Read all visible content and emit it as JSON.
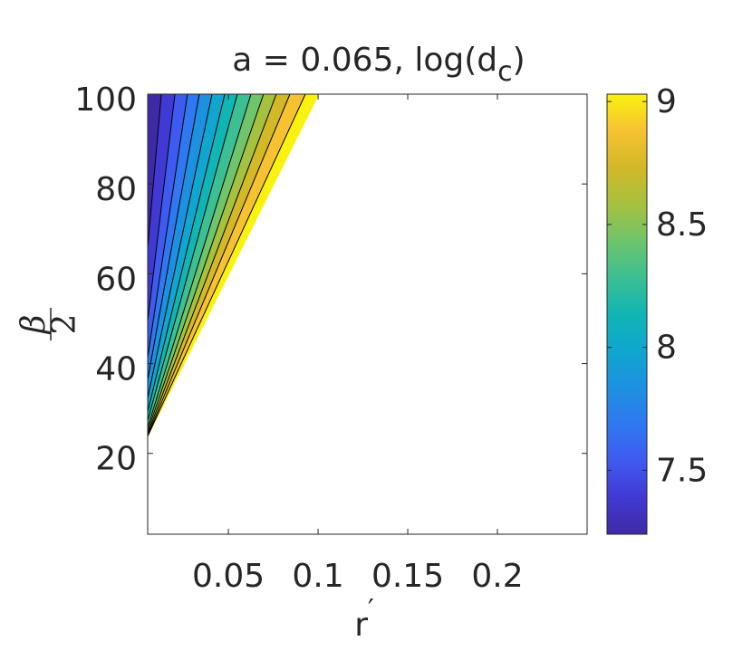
{
  "chart_data": {
    "type": "contourf",
    "title": [
      "a = 0.065, log(d",
      "c",
      ")"
    ],
    "xlabel": [
      "r",
      "′"
    ],
    "ylabel": [
      "β",
      "2"
    ],
    "xlim": [
      0.005,
      0.25
    ],
    "ylim": [
      2,
      100
    ],
    "xticks": [
      0.05,
      0.1,
      0.15,
      0.2
    ],
    "yticks": [
      20,
      40,
      60,
      80,
      100
    ],
    "contour": {
      "x_top": [
        0.0126,
        0.0202,
        0.0272,
        0.0338,
        0.0409,
        0.048,
        0.055,
        0.0626,
        0.0696,
        0.0767,
        0.0843,
        0.0929,
        0.1005
      ],
      "y_left": [
        65.8,
        49.5,
        41.4,
        36.4,
        32.3,
        29.3,
        27.3,
        25.8,
        25,
        24.4,
        24,
        23.8,
        23.6
      ]
    },
    "colors": [
      "#3e2aa6",
      "#4139d3",
      "#3f5af0",
      "#2f78f0",
      "#1d91e0",
      "#10a6cf",
      "#10b5b4",
      "#3cbf92",
      "#6fc46c",
      "#a6c13f",
      "#d3b828",
      "#f6c232",
      "#f9f20e"
    ],
    "clim": [
      7.24,
      9.03
    ],
    "cticks": [
      7.5,
      8,
      8.5,
      9
    ]
  }
}
